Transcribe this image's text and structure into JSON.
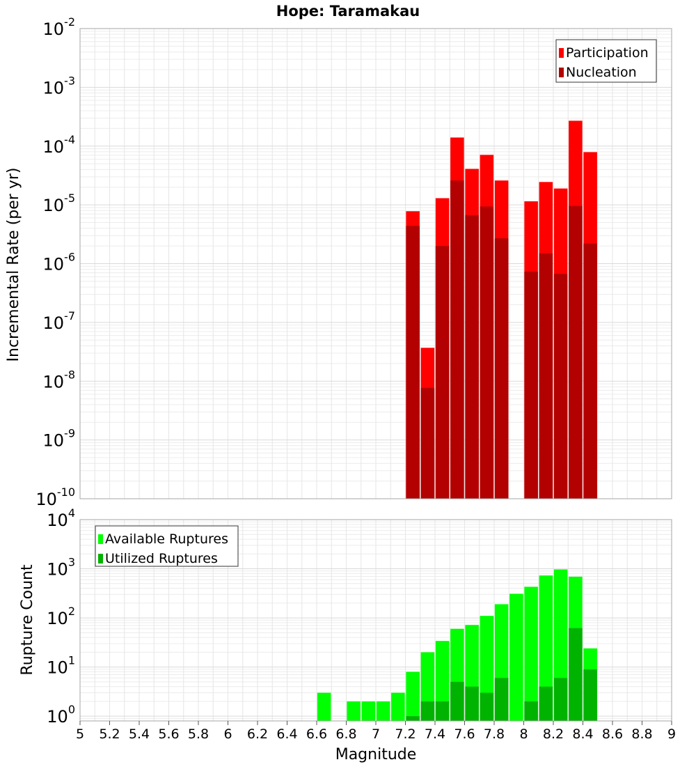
{
  "title": "Hope: Taramakau",
  "xlabel": "Magnitude",
  "x_ticks": [
    "5",
    "5.2",
    "5.4",
    "5.6",
    "5.8",
    "6",
    "6.2",
    "6.4",
    "6.6",
    "6.8",
    "7",
    "7.2",
    "7.4",
    "7.6",
    "7.8",
    "8",
    "8.2",
    "8.4",
    "8.6",
    "8.8",
    "9"
  ],
  "chart_data": [
    {
      "type": "bar",
      "panel": "rate",
      "ylabel": "Incremental Rate (per yr)",
      "yscale": "log",
      "xlim": [
        5,
        9
      ],
      "ylim": [
        1e-10,
        0.01
      ],
      "y_tick_exponents": [
        "-10",
        "-9",
        "-8",
        "-7",
        "-6",
        "-5",
        "-4",
        "-3",
        "-2"
      ],
      "legend_position": "top-right",
      "x": [
        7.25,
        7.35,
        7.45,
        7.55,
        7.65,
        7.75,
        7.85,
        8.05,
        8.15,
        8.25,
        8.35,
        8.45
      ],
      "series": [
        {
          "name": "Participation",
          "color": "#ff0000",
          "values": [
            7.8e-06,
            3.7e-08,
            1.3e-05,
            0.00014,
            4.1e-05,
            7.1e-05,
            2.6e-05,
            1.15e-05,
            2.45e-05,
            1.9e-05,
            0.00027,
            7.9e-05
          ]
        },
        {
          "name": "Nucleation",
          "color": "#b30000",
          "values": [
            4.4e-06,
            7.7e-09,
            2e-06,
            2.6e-05,
            6.7e-06,
            9.4e-06,
            2.7e-06,
            7.3e-07,
            1.5e-06,
            6.7e-07,
            9.6e-06,
            2.2e-06
          ]
        }
      ]
    },
    {
      "type": "bar",
      "panel": "count",
      "ylabel": "Rupture Count",
      "yscale": "log",
      "xlim": [
        5,
        9
      ],
      "ylim": [
        0.8,
        10000
      ],
      "y_tick_exponents": [
        "0",
        "1",
        "2",
        "3",
        "4"
      ],
      "legend_position": "top-left",
      "series": [
        {
          "name": "Available Ruptures",
          "color": "#00ff00",
          "x": [
            6.65,
            6.85,
            6.95,
            7.05,
            7.15,
            7.25,
            7.35,
            7.45,
            7.55,
            7.65,
            7.75,
            7.85,
            7.95,
            8.05,
            8.15,
            8.25,
            8.35,
            8.45
          ],
          "values": [
            3,
            2,
            2,
            2,
            3,
            8,
            20,
            34,
            60,
            72,
            110,
            190,
            310,
            430,
            730,
            970,
            690,
            24
          ]
        },
        {
          "name": "Utilized Ruptures",
          "color": "#00b300",
          "x": [
            7.25,
            7.35,
            7.45,
            7.55,
            7.65,
            7.75,
            7.85,
            8.05,
            8.15,
            8.25,
            8.35,
            8.45
          ],
          "values": [
            1,
            2,
            2,
            5,
            4,
            3,
            6,
            2,
            4,
            6,
            62,
            9
          ]
        }
      ]
    }
  ]
}
